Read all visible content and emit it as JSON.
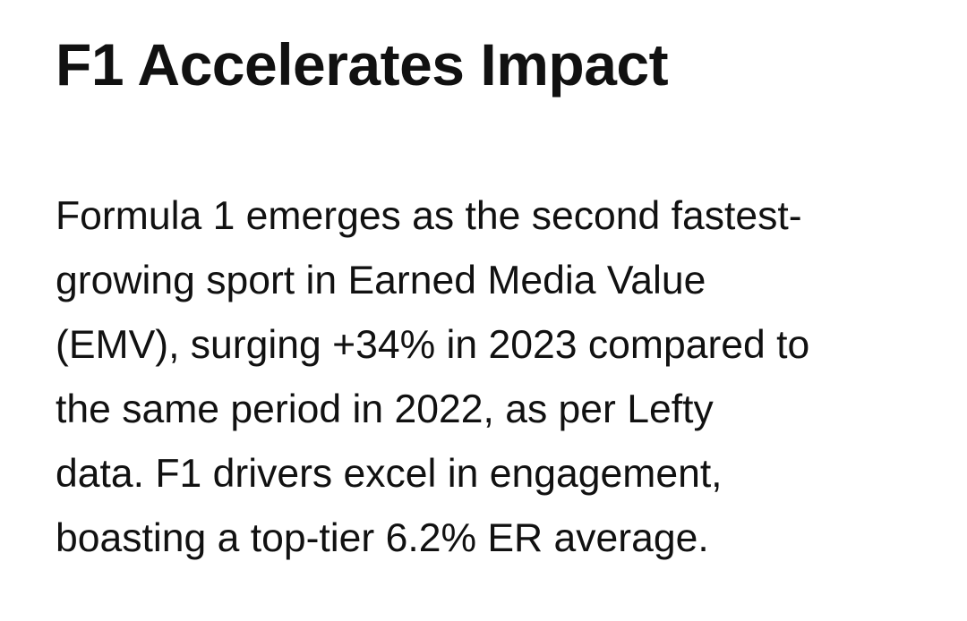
{
  "article": {
    "title": "F1 Accelerates Impact",
    "body_lines": [
      "Formula 1 emerges as the second fastest-",
      "growing sport in Earned Media Value",
      "(EMV), surging +34% in 2023 compared to",
      "the same period in 2022, as per Lefty",
      "data. F1 drivers excel in engagement,",
      "boasting a top-tier 6.2% ER average."
    ]
  }
}
